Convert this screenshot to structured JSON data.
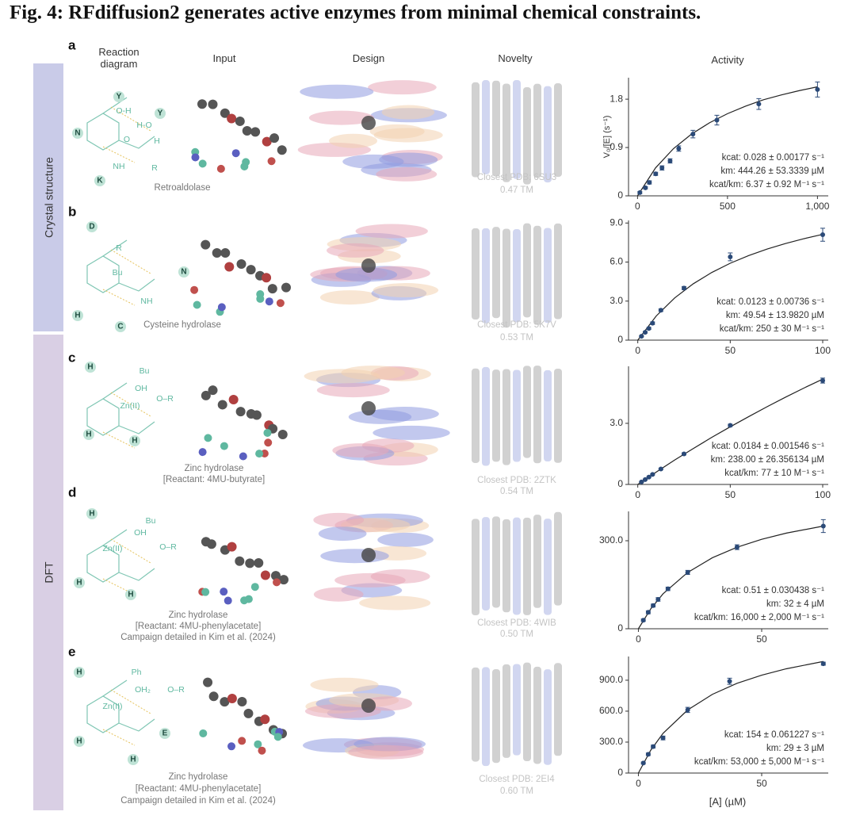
{
  "title": "Fig. 4: RFdiffusion2 generates active enzymes from minimal chemical constraints.",
  "columns": [
    "Reaction diagram",
    "Input",
    "Design",
    "Novelty",
    "Activity"
  ],
  "row_groups": [
    "Crystal structure",
    "DFT"
  ],
  "x_label": "[A] (µM)",
  "panels": [
    {
      "letter": "a",
      "diagram_labels": [
        "Y",
        "O-H",
        "Y",
        "H-O",
        "N",
        "K",
        "O",
        "R",
        "H",
        "NH"
      ],
      "caption": [
        "Retroaldolase"
      ],
      "closest_pdb": "Closest PDB: 6SU3",
      "tm": "0.47 TM",
      "chart_data": {
        "type": "scatter",
        "y_label": "V₀/[E] (s⁻¹)",
        "x": [
          13,
          44,
          66,
          101,
          136,
          181,
          229,
          308,
          441,
          674,
          1000
        ],
        "series": [
          {
            "color": "#2b4a78",
            "values": [
              0.06,
              0.15,
              0.25,
              0.41,
              0.52,
              0.65,
              0.88,
              1.15,
              1.41,
              1.71,
              1.98
            ],
            "errors": [
              0.02,
              0.02,
              0.03,
              0.03,
              0.04,
              0.04,
              0.05,
              0.07,
              0.09,
              0.1,
              0.14
            ]
          }
        ],
        "fit": {
          "x": [
            0,
            100,
            200,
            300,
            400,
            500,
            600,
            700,
            800,
            900,
            1000
          ],
          "values": [
            0,
            0.52,
            0.88,
            1.15,
            1.36,
            1.53,
            1.67,
            1.79,
            1.88,
            1.96,
            2.03
          ]
        },
        "xlim": [
          -50,
          1060
        ],
        "ylim": [
          0,
          2.2
        ],
        "xticks": [
          0,
          500,
          {
            "value": 1000,
            "label": "1,000"
          }
        ],
        "yticks": [
          0,
          0.9,
          1.8
        ],
        "annotations": [
          "kcat: 0.028 ± 0.00177 s⁻¹",
          "km: 444.26 ± 53.3339 µM",
          "kcat/km: 6.37 ± 0.92 M⁻¹ s⁻¹"
        ]
      }
    },
    {
      "letter": "b",
      "diagram_labels": [
        "D",
        "R",
        "Bu",
        "N",
        "H",
        "C",
        "NH"
      ],
      "caption": [
        "Cysteine hydrolase"
      ],
      "closest_pdb": "Closest PDB: 5K7V",
      "tm": "0.53 TM",
      "chart_data": {
        "type": "scatter",
        "x": [
          2,
          4,
          6,
          8,
          12.5,
          25,
          50,
          100
        ],
        "series": [
          {
            "color": "#2b4a78",
            "values": [
              0.3,
              0.6,
              0.9,
              1.3,
              2.3,
              4.0,
              6.4,
              8.1
            ],
            "errors": [
              0.05,
              0.06,
              0.08,
              0.1,
              0.1,
              0.12,
              0.3,
              0.5
            ]
          }
        ],
        "fit": {
          "x": [
            0,
            10,
            20,
            30,
            40,
            50,
            60,
            70,
            80,
            90,
            100
          ],
          "values": [
            0,
            1.86,
            3.25,
            4.33,
            5.2,
            5.91,
            6.5,
            7.0,
            7.43,
            7.8,
            8.13
          ]
        },
        "xlim": [
          -5,
          103
        ],
        "ylim": [
          0,
          9.2
        ],
        "xticks": [
          0,
          50,
          100
        ],
        "yticks": [
          0,
          {
            "value": 3,
            "label": "3.0"
          },
          {
            "value": 6,
            "label": "6.0"
          },
          {
            "value": 9,
            "label": "9.0"
          }
        ],
        "annotations": [
          "kcat: 0.0123 ± 0.00736 s⁻¹",
          "km: 49.54 ± 13.9820 µM",
          "kcat/km: 250 ± 30 M⁻¹ s⁻¹"
        ]
      }
    },
    {
      "letter": "c",
      "diagram_labels": [
        "H",
        "Bu",
        "OH",
        "O–R",
        "Zn(II)",
        "H",
        "H"
      ],
      "caption": [
        "Zinc hydrolase",
        "[Reactant: 4MU-butyrate]"
      ],
      "closest_pdb": "Closest PDB: 2ZTK",
      "tm": "0.54 TM",
      "chart_data": {
        "type": "scatter",
        "x": [
          2,
          4,
          6,
          8,
          12.5,
          25,
          50,
          100
        ],
        "series": [
          {
            "color": "#2b4a78",
            "values": [
              0.12,
              0.24,
              0.36,
              0.49,
              0.76,
              1.5,
              2.9,
              5.1
            ],
            "errors": [
              0.02,
              0.02,
              0.03,
              0.03,
              0.04,
              0.05,
              0.06,
              0.12
            ]
          }
        ],
        "fit": {
          "x": [
            0,
            10,
            20,
            30,
            40,
            50,
            60,
            70,
            80,
            90,
            100
          ],
          "values": [
            0,
            0.61,
            1.2,
            1.76,
            2.31,
            2.83,
            3.33,
            3.82,
            4.29,
            4.74,
            5.17
          ]
        },
        "xlim": [
          -5,
          103
        ],
        "ylim": [
          0,
          5.8
        ],
        "xticks": [
          0,
          50,
          100
        ],
        "yticks": [
          0,
          {
            "value": 3,
            "label": "3.0"
          }
        ],
        "annotations": [
          "kcat: 0.0184 ± 0.001546 s⁻¹",
          "km: 238.00 ± 26.356134 µM",
          "kcat/km: 77 ± 10 M⁻¹ s⁻¹"
        ]
      }
    },
    {
      "letter": "d",
      "diagram_labels": [
        "H",
        "Bu",
        "OH",
        "O–R",
        "Zn(II)",
        "H",
        "H"
      ],
      "caption": [
        "Zinc hydrolase",
        "[Reactant: 4MU-phenylacetate]",
        "Campaign detailed in Kim et al. (2024)"
      ],
      "closest_pdb": "Closest PDB: 4WIB",
      "tm": "0.50 TM",
      "chart_data": {
        "type": "scatter",
        "x": [
          2,
          4,
          6,
          8,
          12,
          20,
          40,
          75
        ],
        "series": [
          {
            "color": "#2b4a78",
            "values": [
              29,
              56,
              79,
              100,
              136,
              192,
              278,
              350
            ],
            "errors": [
              4,
              5,
              5,
              6,
              6,
              7,
              8,
              22
            ]
          }
        ],
        "fit": {
          "x": [
            0,
            5,
            10,
            20,
            30,
            40,
            50,
            60,
            75
          ],
          "values": [
            0,
            67.6,
            119,
            192,
            242,
            278,
            305,
            326,
            350
          ]
        },
        "xlim": [
          -4,
          77
        ],
        "ylim": [
          0,
          400
        ],
        "xticks": [
          0,
          50
        ],
        "yticks": [
          0,
          {
            "value": 300,
            "label": "300.0"
          }
        ],
        "annotations": [
          "kcat: 0.51 ± 0.030438 s⁻¹",
          "km: 32 ± 4 µM",
          "kcat/km: 16,000 ± 2,000 M⁻¹ s⁻¹"
        ]
      }
    },
    {
      "letter": "e",
      "diagram_labels": [
        "H",
        "Ph",
        "OH₂",
        "O–R",
        "Zn(II)",
        "E",
        "H",
        "H"
      ],
      "caption": [
        "Zinc hydrolase",
        "[Reactant: 4MU-phenylacetate]",
        "Campaign detailed in Kim et al. (2024)"
      ],
      "closest_pdb": "Closest PDB: 2EI4",
      "tm": "0.60 TM",
      "chart_data": {
        "type": "scatter",
        "x": [
          2,
          4,
          6,
          10,
          20,
          37,
          75
        ],
        "series": [
          {
            "color": "#2b4a78",
            "values": [
              97,
              182,
              257,
              340,
              612,
              890,
              1060
            ],
            "errors": [
              10,
              12,
              14,
              18,
              25,
              30,
              15
            ]
          }
        ],
        "fit": {
          "x": [
            0,
            5,
            10,
            20,
            30,
            40,
            50,
            60,
            75
          ],
          "values": [
            0,
            221,
            385,
            612,
            763,
            870,
            949,
            1011,
            1082
          ]
        },
        "xlim": [
          -4,
          77
        ],
        "ylim": [
          0,
          1130
        ],
        "xticks": [
          0,
          50
        ],
        "yticks": [
          0,
          {
            "value": 300,
            "label": "300.0"
          },
          {
            "value": 600,
            "label": "600.0"
          },
          {
            "value": 900,
            "label": "900.0"
          }
        ],
        "annotations": [
          "kcat: 154 ± 0.061227 s⁻¹",
          "km: 29 ± 3 µM",
          "kcat/km: 53,000 ± 5,000 M⁻¹ s⁻¹"
        ]
      }
    }
  ]
}
